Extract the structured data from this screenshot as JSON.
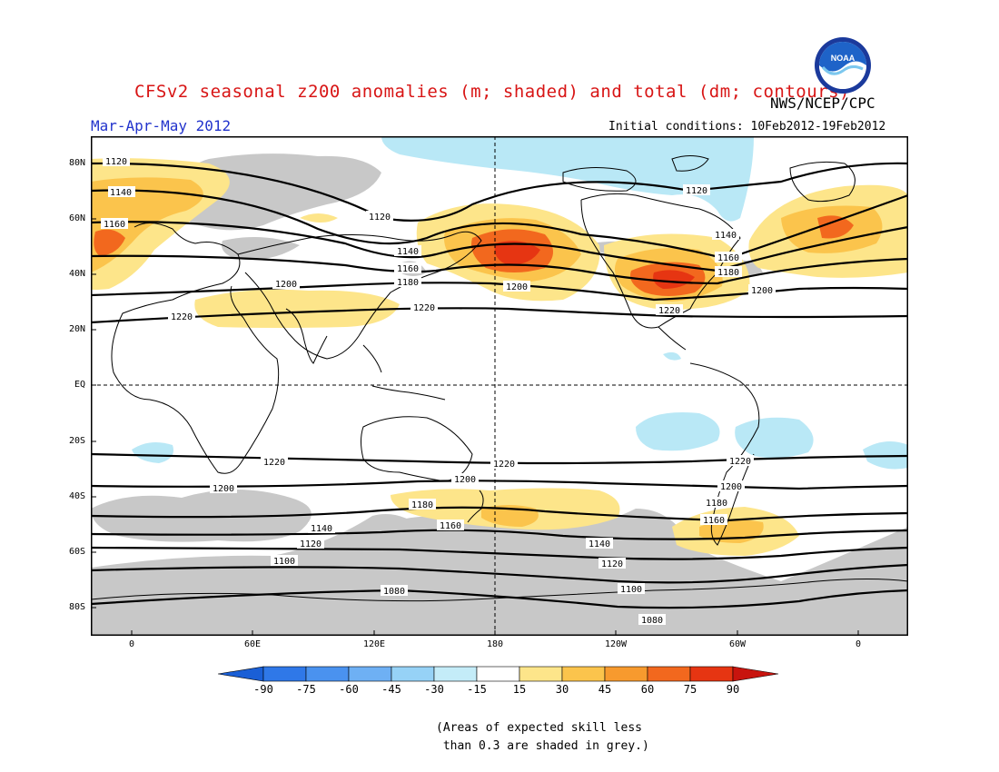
{
  "title": "CFSv2 seasonal z200 anomalies (m; shaded) and total (dm; contours)",
  "agency": "NWS/NCEP/CPC",
  "season": "Mar-Apr-May 2012",
  "initial_conditions": "Initial conditions: 10Feb2012-19Feb2012",
  "logo": {
    "text": "NOAA",
    "icon": "noaa-logo"
  },
  "map": {
    "lat_labels": [
      "80N",
      "60N",
      "40N",
      "20N",
      "EQ",
      "20S",
      "40S",
      "60S",
      "80S"
    ],
    "lon_labels": [
      "0",
      "60E",
      "120E",
      "180",
      "120W",
      "60W",
      "0"
    ],
    "contours": [
      {
        "label": "1120",
        "value": 1120
      },
      {
        "label": "1140",
        "value": 1140
      },
      {
        "label": "1160",
        "value": 1160
      },
      {
        "label": "1180",
        "value": 1180
      },
      {
        "label": "1200",
        "value": 1200
      },
      {
        "label": "1220",
        "value": 1220
      },
      {
        "label": "1100",
        "value": 1100
      },
      {
        "label": "1080",
        "value": 1080
      }
    ]
  },
  "colorbar": {
    "labels": [
      "-90",
      "-75",
      "-60",
      "-45",
      "-30",
      "-15",
      "15",
      "30",
      "45",
      "60",
      "75",
      "90"
    ],
    "colors": [
      "#1a5fd6",
      "#2f78e8",
      "#4a92ef",
      "#6eb0f4",
      "#96d2f6",
      "#c4ecf8",
      "#ffffff",
      "#fde58a",
      "#fbc44c",
      "#f79a2e",
      "#f2681e",
      "#e63512",
      "#c8140e"
    ]
  },
  "note": "(Areas of expected skill less\n than 0.3 are shaded in grey.)"
}
